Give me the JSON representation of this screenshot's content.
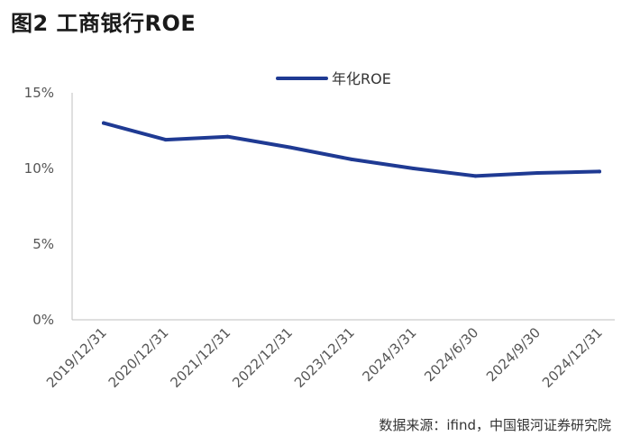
{
  "figure": {
    "title": "图2  工商银行ROE",
    "source": "数据来源：ifind，中国银河证券研究院"
  },
  "colors": {
    "series": "#1f3a93",
    "axis": "#bfbfbf",
    "tick_text": "#555555"
  },
  "chart_data": {
    "type": "line",
    "categories": [
      "2019/12/31",
      "2020/12/31",
      "2021/12/31",
      "2022/12/31",
      "2023/12/31",
      "2024/3/31",
      "2024/6/30",
      "2024/9/30",
      "2024/12/31"
    ],
    "series": [
      {
        "name": "年化ROE",
        "values": [
          13.0,
          11.9,
          12.1,
          11.4,
          10.6,
          10.0,
          9.5,
          9.7,
          9.8
        ]
      }
    ],
    "y_ticks": [
      "0%",
      "5%",
      "10%",
      "15%"
    ],
    "ylim": [
      0,
      15
    ],
    "grid": false,
    "legend": "top-center",
    "xlabel": "",
    "ylabel": ""
  }
}
